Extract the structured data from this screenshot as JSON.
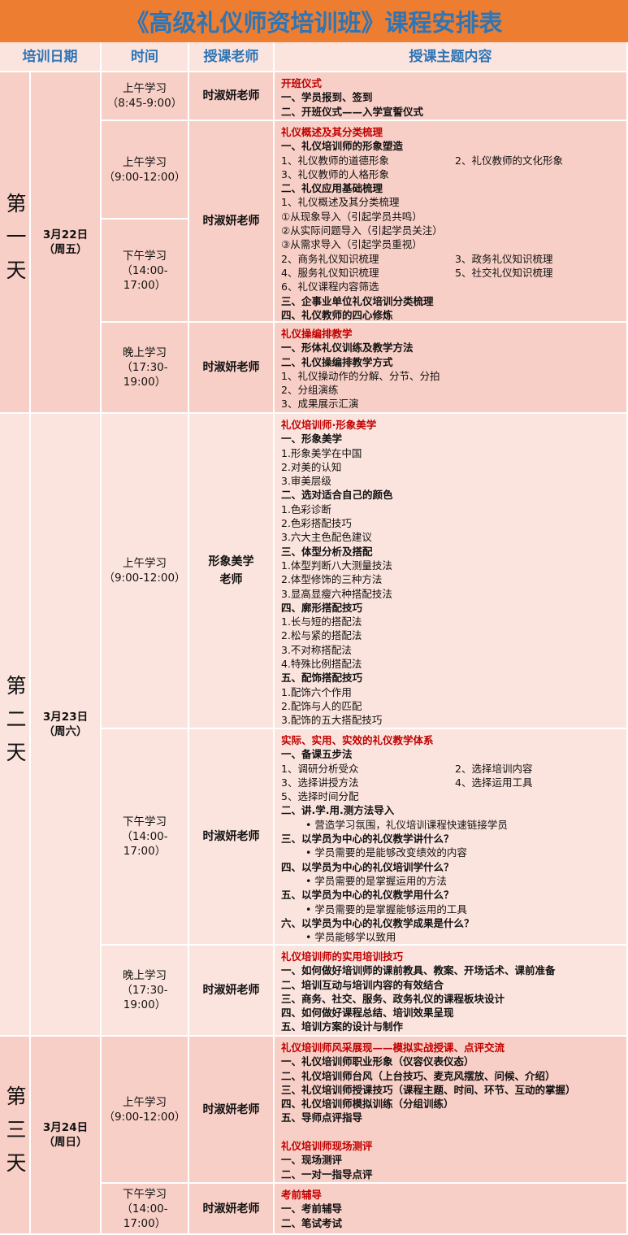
{
  "title": "《高级礼仪师资培训班》课程安排表",
  "headers": [
    "培训日期",
    "时间",
    "授课老师",
    "授课主题内容"
  ],
  "colors": {
    "title_bg": "#ED7D31",
    "title_text": "#2E75B6",
    "accent_red": "#C00000",
    "row_dark": "#F8CFC6",
    "row_light": "#FCE4DE"
  },
  "days": [
    {
      "label": "第一天",
      "date": [
        "3月22日",
        "（周五）"
      ],
      "times": [
        [
          "上午学习",
          "（8:45-9:00）"
        ],
        [
          "上午学习",
          "（9:00-12:00）"
        ],
        [
          "下午学习",
          "（14:00-",
          "17:00）"
        ],
        [
          "晚上学习",
          "（17:30-",
          "19:00）"
        ]
      ],
      "teachers": [
        "时淑妍老师",
        "时淑妍老师",
        "时淑妍老师"
      ],
      "contents": [
        [
          {
            "t": "开班仪式",
            "s": "red"
          },
          {
            "t": "一、学员报到、签到",
            "s": "bold"
          },
          {
            "t": "二、开班仪式——入学宣誓仪式",
            "s": "bold"
          }
        ],
        [
          {
            "t": "礼仪概述及其分类梳理",
            "s": "red"
          },
          {
            "t": "一、礼仪培训师的形象塑造",
            "s": "bold"
          },
          {
            "t": "1、礼仪教师的道德形象",
            "t2": "2、礼仪教师的文化形象"
          },
          {
            "t": "3、礼仪教师的人格形象"
          },
          {
            "t": "二、礼仪应用基础梳理",
            "s": "bold"
          },
          {
            "t": "1、礼仪概述及其分类梳理"
          },
          {
            "t": "①从现象导入（引起学员共鸣）"
          },
          {
            "t": "②从实际问题导入（引起学员关注）"
          },
          {
            "t": "③从需求导入（引起学员重视）"
          },
          {
            "t": "2、商务礼仪知识梳理",
            "t2": "3、政务礼仪知识梳理"
          },
          {
            "t": "4、服务礼仪知识梳理",
            "t2": "5、社交礼仪知识梳理"
          },
          {
            "t": "6、礼仪课程内容筛选"
          },
          {
            "t": "三、企事业单位礼仪培训分类梳理",
            "s": "bold"
          },
          {
            "t": "四、礼仪教师的四心修炼",
            "s": "bold"
          }
        ],
        [
          {
            "t": "礼仪操编排教学",
            "s": "red"
          },
          {
            "t": "一、形体礼仪训练及教学方法",
            "s": "bold"
          },
          {
            "t": "二、礼仪操编排教学方式",
            "s": "bold"
          },
          {
            "t": "1、礼仪操动作的分解、分节、分拍"
          },
          {
            "t": "2、分组演练"
          },
          {
            "t": "3、成果展示汇演"
          }
        ]
      ]
    },
    {
      "label": "第二天",
      "date": [
        "3月23日",
        "（周六）"
      ],
      "times": [
        [
          "上午学习",
          "（9:00-12:00）"
        ],
        [
          "下午学习",
          "（14:00-",
          "17:00）"
        ],
        [
          "晚上学习",
          "（17:30-",
          "19:00）"
        ]
      ],
      "teachers": [
        "形象美学老师",
        "时淑妍老师",
        "时淑妍老师"
      ],
      "contents": [
        [
          {
            "t": "礼仪培训师·形象美学",
            "s": "red"
          },
          {
            "t": "一、形象美学",
            "s": "bold"
          },
          {
            "t": "1.形象美学在中国"
          },
          {
            "t": "2.对美的认知"
          },
          {
            "t": "3.审美层级"
          },
          {
            "t": "二、选对适合自己的颜色",
            "s": "bold"
          },
          {
            "t": "1.色彩诊断"
          },
          {
            "t": "2.色彩搭配技巧"
          },
          {
            "t": "3.六大主色配色建议"
          },
          {
            "t": "三、体型分析及搭配",
            "s": "bold"
          },
          {
            "t": "1.体型判断八大测量技法"
          },
          {
            "t": "2.体型修饰的三种方法"
          },
          {
            "t": "3.显高显瘦六种搭配技法"
          },
          {
            "t": "四、廓形搭配技巧",
            "s": "bold"
          },
          {
            "t": "1.长与短的搭配法"
          },
          {
            "t": "2.松与紧的搭配法"
          },
          {
            "t": "3.不对称搭配法"
          },
          {
            "t": "4.特殊比例搭配法"
          },
          {
            "t": "五、配饰搭配技巧",
            "s": "bold"
          },
          {
            "t": "1.配饰六个作用"
          },
          {
            "t": "2.配饰与人的匹配"
          },
          {
            "t": "3.配饰的五大搭配技巧"
          }
        ],
        [
          {
            "t": "实际、实用、实效的礼仪教学体系",
            "s": "red"
          },
          {
            "t": "一、备课五步法",
            "s": "bold"
          },
          {
            "t": "1、调研分析受众",
            "t2": "2、选择培训内容"
          },
          {
            "t": "3、选择讲授方法",
            "t2": "4、选择运用工具"
          },
          {
            "t": "5、选择时间分配"
          },
          {
            "t": "二、讲.学.用.测方法导入",
            "s": "bold"
          },
          {
            "t": "• 营造学习氛围，礼仪培训课程快速链接学员",
            "s": "bullet"
          },
          {
            "t": "三、以学员为中心的礼仪教学讲什么？",
            "s": "bold"
          },
          {
            "t": "• 学员需要的是能够改变绩效的内容",
            "s": "bullet"
          },
          {
            "t": "四、以学员为中心的礼仪培训学什么？",
            "s": "bold"
          },
          {
            "t": "• 学员需要的是掌握运用的方法",
            "s": "bullet"
          },
          {
            "t": "五、以学员为中心的礼仪教学用什么？",
            "s": "bold"
          },
          {
            "t": "• 学员需要的是掌握能够运用的工具",
            "s": "bullet"
          },
          {
            "t": "六、以学员为中心的礼仪教学成果是什么？",
            "s": "bold"
          },
          {
            "t": "• 学员能够学以致用",
            "s": "bullet"
          }
        ],
        [
          {
            "t": "礼仪培训师的实用培训技巧",
            "s": "red"
          },
          {
            "t": "一、如何做好培训师的课前教具、教案、开场话术、课前准备",
            "s": "bold"
          },
          {
            "t": "二、培训互动与培训内容的有效结合",
            "s": "bold"
          },
          {
            "t": "三、商务、社交、服务、政务礼仪的课程板块设计",
            "s": "bold"
          },
          {
            "t": "四、如何做好课程总结、培训效果呈现",
            "s": "bold"
          },
          {
            "t": "五、培训方案的设计与制作",
            "s": "bold"
          }
        ]
      ]
    },
    {
      "label": "第三天",
      "date": [
        "3月24日",
        "（周日）"
      ],
      "times": [
        [
          "上午学习",
          "（9:00-12:00）"
        ],
        [
          "下午学习",
          "（14:00-",
          "17:00）"
        ]
      ],
      "teachers": [
        "时淑妍老师",
        "时淑妍老师"
      ],
      "contents": [
        [
          {
            "t": "礼仪培训师风采展现——模拟实战授课、点评交流",
            "s": "red"
          },
          {
            "t": "一、礼仪培训师职业形象（仪容仪表仪态）",
            "s": "bold"
          },
          {
            "t": "二、礼仪培训师台风（上台技巧、麦克风摆放、问候、介绍）",
            "s": "bold"
          },
          {
            "t": "三、礼仪培训师授课技巧（课程主题、时间、环节、互动的掌握）",
            "s": "bold"
          },
          {
            "t": "四、礼仪培训师模拟训练（分组训练）",
            "s": "bold"
          },
          {
            "t": "五、导师点评指导",
            "s": "bold"
          },
          {
            "t": "",
            "s": "blank"
          },
          {
            "t": "礼仪培训师现场测评",
            "s": "red"
          },
          {
            "t": "一、现场测评",
            "s": "bold"
          },
          {
            "t": "二、一对一指导点评",
            "s": "bold"
          }
        ],
        [
          {
            "t": "考前辅导",
            "s": "red"
          },
          {
            "t": "一、考前辅导",
            "s": "bold"
          },
          {
            "t": "二、笔试考试",
            "s": "bold"
          }
        ]
      ]
    }
  ]
}
